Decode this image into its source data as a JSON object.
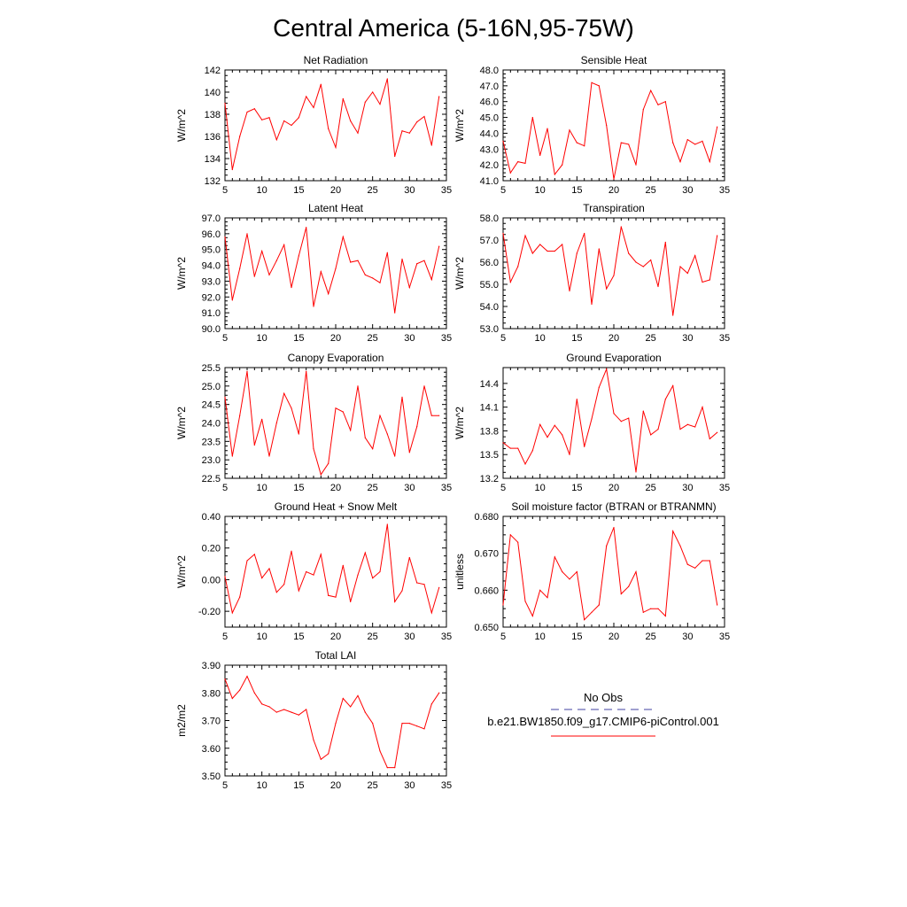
{
  "title": "Central America (5-16N,95-75W)",
  "line_color": "#ff0000",
  "obs_color": "#4040a0",
  "legend": {
    "no_obs": "No Obs",
    "model_case": "b.e21.BW1850.f09_g17.CMIP6-piControl.001"
  },
  "chart_data": [
    {
      "type": "line",
      "title": "Net Radiation",
      "ylabel": "W/m^2",
      "xlim": [
        5,
        35
      ],
      "ylim": [
        132,
        142
      ],
      "xticks": [
        5,
        10,
        15,
        20,
        25,
        30,
        35
      ],
      "yticks": [
        "132",
        "134",
        "136",
        "138",
        "140",
        "142"
      ],
      "x": [
        5,
        6,
        7,
        8,
        9,
        10,
        11,
        12,
        13,
        14,
        15,
        16,
        17,
        18,
        19,
        20,
        21,
        22,
        23,
        24,
        25,
        26,
        27,
        28,
        29,
        30,
        31,
        32,
        33,
        34
      ],
      "values": [
        139.0,
        133.0,
        136.0,
        138.2,
        138.5,
        137.5,
        137.7,
        135.7,
        137.4,
        137.0,
        137.7,
        139.6,
        138.6,
        140.7,
        136.7,
        135.0,
        139.4,
        137.4,
        136.3,
        139.1,
        140.0,
        138.9,
        141.2,
        134.2,
        136.5,
        136.3,
        137.3,
        137.8,
        135.2,
        139.6
      ]
    },
    {
      "type": "line",
      "title": "Sensible Heat",
      "ylabel": "W/m^2",
      "xlim": [
        5,
        35
      ],
      "ylim": [
        41,
        48
      ],
      "xticks": [
        5,
        10,
        15,
        20,
        25,
        30,
        35
      ],
      "yticks": [
        "41.0",
        "42.0",
        "43.0",
        "44.0",
        "45.0",
        "46.0",
        "47.0",
        "48.0"
      ],
      "x": [
        5,
        6,
        7,
        8,
        9,
        10,
        11,
        12,
        13,
        14,
        15,
        16,
        17,
        18,
        19,
        20,
        21,
        22,
        23,
        24,
        25,
        26,
        27,
        28,
        29,
        30,
        31,
        32,
        33,
        34
      ],
      "values": [
        43.5,
        41.5,
        42.2,
        42.1,
        45.0,
        42.6,
        44.3,
        41.4,
        42.0,
        44.2,
        43.4,
        43.2,
        47.2,
        47.0,
        44.5,
        41.1,
        43.4,
        43.3,
        42.0,
        45.5,
        46.7,
        45.8,
        46.0,
        43.4,
        42.2,
        43.6,
        43.3,
        43.5,
        42.2,
        44.4
      ]
    },
    {
      "type": "line",
      "title": "Latent Heat",
      "ylabel": "W/m^2",
      "xlim": [
        5,
        35
      ],
      "ylim": [
        90,
        97
      ],
      "xticks": [
        5,
        10,
        15,
        20,
        25,
        30,
        35
      ],
      "yticks": [
        "90.0",
        "91.0",
        "92.0",
        "93.0",
        "94.0",
        "95.0",
        "96.0",
        "97.0"
      ],
      "x": [
        5,
        6,
        7,
        8,
        9,
        10,
        11,
        12,
        13,
        14,
        15,
        16,
        17,
        18,
        19,
        20,
        21,
        22,
        23,
        24,
        25,
        26,
        27,
        28,
        29,
        30,
        31,
        32,
        33,
        34
      ],
      "values": [
        95.8,
        91.8,
        93.8,
        96.0,
        93.3,
        94.9,
        93.4,
        94.3,
        95.3,
        92.6,
        94.6,
        96.4,
        91.4,
        93.6,
        92.2,
        93.8,
        95.8,
        94.2,
        94.3,
        93.4,
        93.2,
        92.9,
        94.8,
        91.0,
        94.4,
        92.6,
        94.1,
        94.3,
        93.1,
        95.2
      ]
    },
    {
      "type": "line",
      "title": "Transpiration",
      "ylabel": "W/m^2",
      "xlim": [
        5,
        35
      ],
      "ylim": [
        53,
        58
      ],
      "xticks": [
        5,
        10,
        15,
        20,
        25,
        30,
        35
      ],
      "yticks": [
        "53.0",
        "54.0",
        "55.0",
        "56.0",
        "57.0",
        "58.0"
      ],
      "x": [
        5,
        6,
        7,
        8,
        9,
        10,
        11,
        12,
        13,
        14,
        15,
        16,
        17,
        18,
        19,
        20,
        21,
        22,
        23,
        24,
        25,
        26,
        27,
        28,
        29,
        30,
        31,
        32,
        33,
        34
      ],
      "values": [
        57.3,
        55.1,
        55.8,
        57.2,
        56.4,
        56.8,
        56.5,
        56.5,
        56.8,
        54.7,
        56.4,
        57.3,
        54.1,
        56.6,
        54.8,
        55.4,
        57.6,
        56.4,
        56.0,
        55.8,
        56.1,
        54.9,
        56.9,
        53.6,
        55.8,
        55.5,
        56.3,
        55.1,
        55.2,
        57.2
      ]
    },
    {
      "type": "line",
      "title": "Canopy Evaporation",
      "ylabel": "W/m^2",
      "xlim": [
        5,
        35
      ],
      "ylim": [
        22.5,
        25.5
      ],
      "xticks": [
        5,
        10,
        15,
        20,
        25,
        30,
        35
      ],
      "yticks": [
        "22.5",
        "23.0",
        "23.5",
        "24.0",
        "24.5",
        "25.0",
        "25.5"
      ],
      "x": [
        5,
        6,
        7,
        8,
        9,
        10,
        11,
        12,
        13,
        14,
        15,
        16,
        17,
        18,
        19,
        20,
        21,
        22,
        23,
        24,
        25,
        26,
        27,
        28,
        29,
        30,
        31,
        32,
        33,
        34
      ],
      "values": [
        24.7,
        23.1,
        24.2,
        25.4,
        23.4,
        24.1,
        23.1,
        24.0,
        24.8,
        24.4,
        23.7,
        25.4,
        23.3,
        22.6,
        22.9,
        24.4,
        24.3,
        23.8,
        25.0,
        23.6,
        23.3,
        24.2,
        23.7,
        23.1,
        24.7,
        23.2,
        23.9,
        25.0,
        24.2,
        24.2
      ]
    },
    {
      "type": "line",
      "title": "Ground Evaporation",
      "ylabel": "W/m^2",
      "xlim": [
        5,
        35
      ],
      "ylim": [
        13.2,
        14.6
      ],
      "xticks": [
        5,
        10,
        15,
        20,
        25,
        30,
        35
      ],
      "yticks": [
        "13.2",
        "13.5",
        "13.8",
        "14.1",
        "14.4"
      ],
      "x": [
        5,
        6,
        7,
        8,
        9,
        10,
        11,
        12,
        13,
        14,
        15,
        16,
        17,
        18,
        19,
        20,
        21,
        22,
        23,
        24,
        25,
        26,
        27,
        28,
        29,
        30,
        31,
        32,
        33,
        34
      ],
      "values": [
        13.65,
        13.58,
        13.58,
        13.38,
        13.55,
        13.88,
        13.72,
        13.87,
        13.75,
        13.5,
        14.2,
        13.6,
        13.95,
        14.35,
        14.58,
        14.02,
        13.92,
        13.96,
        13.28,
        14.05,
        13.75,
        13.82,
        14.2,
        14.37,
        13.82,
        13.88,
        13.85,
        14.1,
        13.7,
        13.78
      ]
    },
    {
      "type": "line",
      "title": "Ground Heat + Snow Melt",
      "ylabel": "W/m^2",
      "xlim": [
        5,
        35
      ],
      "ylim": [
        -0.3,
        0.4
      ],
      "xticks": [
        5,
        10,
        15,
        20,
        25,
        30,
        35
      ],
      "yticks": [
        "-0.20",
        "0.00",
        "0.20",
        "0.40"
      ],
      "x": [
        5,
        6,
        7,
        8,
        9,
        10,
        11,
        12,
        13,
        14,
        15,
        16,
        17,
        18,
        19,
        20,
        21,
        22,
        23,
        24,
        25,
        26,
        27,
        28,
        29,
        30,
        31,
        32,
        33,
        34
      ],
      "values": [
        0.02,
        -0.21,
        -0.11,
        0.12,
        0.16,
        0.01,
        0.07,
        -0.08,
        -0.03,
        0.18,
        -0.07,
        0.05,
        0.03,
        0.16,
        -0.1,
        -0.11,
        0.09,
        -0.14,
        0.03,
        0.17,
        0.01,
        0.05,
        0.35,
        -0.14,
        -0.07,
        0.14,
        -0.02,
        -0.03,
        -0.21,
        -0.05
      ]
    },
    {
      "type": "line",
      "title": "Soil moisture factor (BTRAN or BTRANMN)",
      "ylabel": "unitless",
      "xlim": [
        5,
        35
      ],
      "ylim": [
        0.65,
        0.68
      ],
      "xticks": [
        5,
        10,
        15,
        20,
        25,
        30,
        35
      ],
      "yticks": [
        "0.650",
        "0.660",
        "0.670",
        "0.680"
      ],
      "x": [
        5,
        6,
        7,
        8,
        9,
        10,
        11,
        12,
        13,
        14,
        15,
        16,
        17,
        18,
        19,
        20,
        21,
        22,
        23,
        24,
        25,
        26,
        27,
        28,
        29,
        30,
        31,
        32,
        33,
        34
      ],
      "values": [
        0.656,
        0.675,
        0.673,
        0.657,
        0.653,
        0.66,
        0.658,
        0.669,
        0.665,
        0.663,
        0.665,
        0.652,
        0.654,
        0.656,
        0.672,
        0.677,
        0.659,
        0.661,
        0.665,
        0.654,
        0.655,
        0.655,
        0.653,
        0.676,
        0.672,
        0.667,
        0.666,
        0.668,
        0.668,
        0.656
      ]
    },
    {
      "type": "line",
      "title": "Total LAI",
      "ylabel": "m2/m2",
      "xlim": [
        5,
        35
      ],
      "ylim": [
        3.5,
        3.9
      ],
      "xticks": [
        5,
        10,
        15,
        20,
        25,
        30,
        35
      ],
      "yticks": [
        "3.50",
        "3.60",
        "3.70",
        "3.80",
        "3.90"
      ],
      "x": [
        5,
        6,
        7,
        8,
        9,
        10,
        11,
        12,
        13,
        14,
        15,
        16,
        17,
        18,
        19,
        20,
        21,
        22,
        23,
        24,
        25,
        26,
        27,
        28,
        29,
        30,
        31,
        32,
        33,
        34
      ],
      "values": [
        3.85,
        3.78,
        3.81,
        3.86,
        3.8,
        3.76,
        3.75,
        3.73,
        3.74,
        3.73,
        3.72,
        3.74,
        3.63,
        3.56,
        3.58,
        3.69,
        3.78,
        3.75,
        3.79,
        3.73,
        3.69,
        3.59,
        3.53,
        3.53,
        3.69,
        3.69,
        3.68,
        3.67,
        3.76,
        3.8
      ]
    }
  ]
}
